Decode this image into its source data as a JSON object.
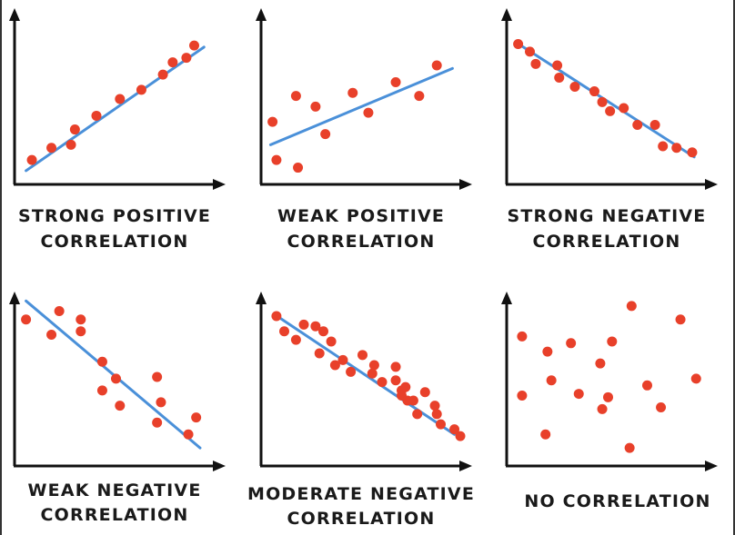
{
  "chart_data": [
    {
      "type": "scatter",
      "title": "STRONG POSITIVE CORRELATION",
      "title_lines": [
        "STRONG POSITIVE",
        "CORRELATION"
      ],
      "xlim": [
        0,
        100
      ],
      "ylim": [
        0,
        100
      ],
      "points": [
        [
          7,
          13
        ],
        [
          17,
          21
        ],
        [
          27,
          23
        ],
        [
          29,
          33
        ],
        [
          40,
          42
        ],
        [
          52,
          53
        ],
        [
          63,
          59
        ],
        [
          74,
          69
        ],
        [
          79,
          77
        ],
        [
          86,
          80
        ],
        [
          90,
          88
        ]
      ],
      "trendline": [
        [
          4,
          6
        ],
        [
          95,
          87
        ]
      ],
      "colors": {
        "points": "#e8402a",
        "line": "#4a90d9"
      }
    },
    {
      "type": "scatter",
      "title": "WEAK POSITIVE CORRELATION",
      "title_lines": [
        "WEAK POSITIVE",
        "CORRELATION"
      ],
      "xlim": [
        0,
        100
      ],
      "ylim": [
        0,
        100
      ],
      "points": [
        [
          4,
          38
        ],
        [
          6,
          13
        ],
        [
          16,
          55
        ],
        [
          17,
          8
        ],
        [
          26,
          48
        ],
        [
          31,
          30
        ],
        [
          45,
          57
        ],
        [
          53,
          44
        ],
        [
          67,
          64
        ],
        [
          79,
          55
        ],
        [
          88,
          75
        ]
      ],
      "trendline": [
        [
          3,
          23
        ],
        [
          96,
          73
        ]
      ],
      "colors": {
        "points": "#e8402a",
        "line": "#4a90d9"
      }
    },
    {
      "type": "scatter",
      "title": "STRONG NEGATIVE CORRELATION",
      "title_lines": [
        "STRONG NEGATIVE",
        "CORRELATION"
      ],
      "xlim": [
        0,
        100
      ],
      "ylim": [
        0,
        100
      ],
      "points": [
        [
          4,
          89
        ],
        [
          10,
          84
        ],
        [
          13,
          76
        ],
        [
          24,
          75
        ],
        [
          25,
          67
        ],
        [
          33,
          61
        ],
        [
          43,
          58
        ],
        [
          47,
          51
        ],
        [
          51,
          45
        ],
        [
          58,
          47
        ],
        [
          65,
          36
        ],
        [
          74,
          36
        ],
        [
          78,
          22
        ],
        [
          85,
          21
        ],
        [
          93,
          18
        ]
      ],
      "trendline": [
        [
          3,
          90
        ],
        [
          94,
          15
        ]
      ],
      "colors": {
        "points": "#e8402a",
        "line": "#4a90d9"
      }
    },
    {
      "type": "scatter",
      "title": "WEAK NEGATIVE CORRELATION",
      "title_lines": [
        "WEAK NEGATIVE",
        "CORRELATION"
      ],
      "xlim": [
        0,
        100
      ],
      "ylim": [
        0,
        100
      ],
      "points": [
        [
          4,
          84
        ],
        [
          21,
          89
        ],
        [
          17,
          75
        ],
        [
          32,
          84
        ],
        [
          32,
          77
        ],
        [
          43,
          59
        ],
        [
          50,
          49
        ],
        [
          43,
          42
        ],
        [
          52,
          33
        ],
        [
          71,
          50
        ],
        [
          73,
          35
        ],
        [
          71,
          23
        ],
        [
          91,
          26
        ],
        [
          87,
          16
        ]
      ],
      "trendline": [
        [
          4,
          95
        ],
        [
          93,
          8
        ]
      ],
      "colors": {
        "points": "#e8402a",
        "line": "#4a90d9"
      }
    },
    {
      "type": "scatter",
      "title": "MODERATE NEGATIVE CORRELATION",
      "title_lines": [
        "MODERATE NEGATIVE",
        "CORRELATION"
      ],
      "xlim": [
        0,
        100
      ],
      "ylim": [
        0,
        100
      ],
      "points": [
        [
          6,
          86
        ],
        [
          10,
          77
        ],
        [
          20,
          81
        ],
        [
          16,
          72
        ],
        [
          26,
          80
        ],
        [
          30,
          77
        ],
        [
          28,
          64
        ],
        [
          34,
          71
        ],
        [
          40,
          60
        ],
        [
          36,
          57
        ],
        [
          44,
          53
        ],
        [
          50,
          63
        ],
        [
          55,
          52
        ],
        [
          56,
          57
        ],
        [
          60,
          47
        ],
        [
          67,
          56
        ],
        [
          67,
          48
        ],
        [
          70,
          42
        ],
        [
          70,
          39
        ],
        [
          72,
          44
        ],
        [
          76,
          36
        ],
        [
          73,
          36
        ],
        [
          78,
          28
        ],
        [
          82,
          41
        ],
        [
          88,
          28
        ],
        [
          87,
          33
        ],
        [
          90,
          22
        ],
        [
          97,
          19
        ],
        [
          100,
          15
        ]
      ],
      "trendline": [
        [
          5,
          87
        ],
        [
          97,
          16
        ]
      ],
      "colors": {
        "points": "#e8402a",
        "line": "#4a90d9"
      }
    },
    {
      "type": "scatter",
      "title": "NO CORRELATION",
      "title_lines": [
        "NO CORRELATION"
      ],
      "xlim": [
        0,
        100
      ],
      "ylim": [
        0,
        100
      ],
      "points": [
        [
          6,
          74
        ],
        [
          19,
          65
        ],
        [
          31,
          70
        ],
        [
          52,
          71
        ],
        [
          46,
          58
        ],
        [
          62,
          92
        ],
        [
          87,
          84
        ],
        [
          21,
          48
        ],
        [
          6,
          39
        ],
        [
          35,
          40
        ],
        [
          50,
          38
        ],
        [
          70,
          45
        ],
        [
          95,
          49
        ],
        [
          77,
          32
        ],
        [
          18,
          16
        ],
        [
          61,
          8
        ],
        [
          47,
          31
        ]
      ],
      "trendline": null,
      "colors": {
        "points": "#e8402a",
        "line": "#4a90d9"
      }
    }
  ]
}
